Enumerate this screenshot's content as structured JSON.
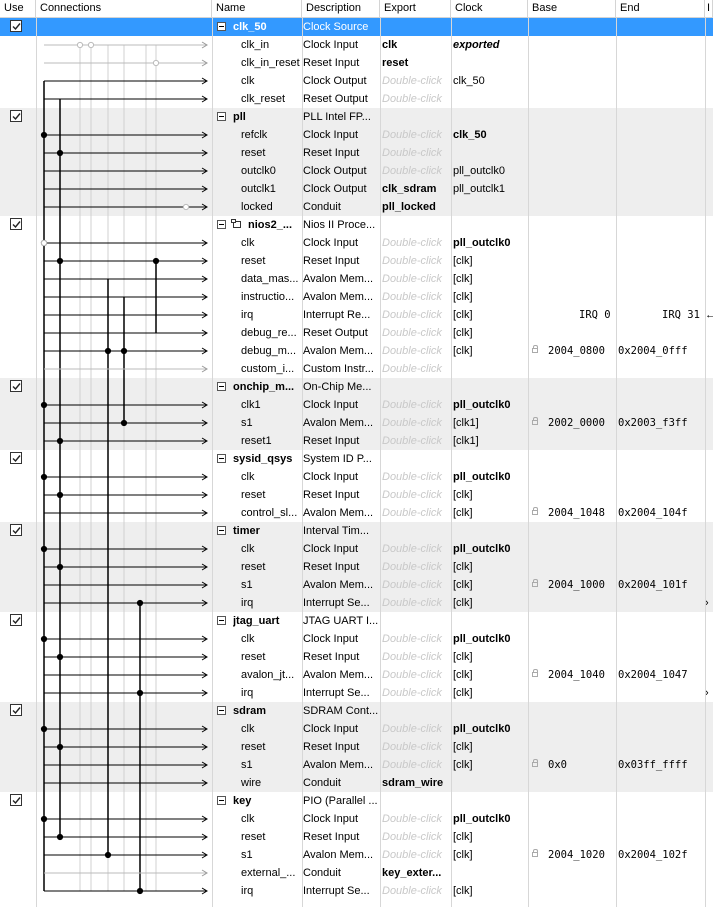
{
  "headers": {
    "use": "Use",
    "connections": "Connections",
    "name": "Name",
    "description": "Description",
    "export": "Export",
    "clock": "Clock",
    "base": "Base",
    "end": "End",
    "irq": "I"
  },
  "rows": [
    {
      "type": "module",
      "name": "clk_50",
      "desc": "Clock Source",
      "export": "",
      "clock": "",
      "base": "",
      "end": "",
      "selected": true
    },
    {
      "type": "port",
      "name": "clk_in",
      "desc": "Clock Input",
      "export": "clk",
      "export_style": "bold",
      "clock": "exported",
      "clock_style": "bold-italic"
    },
    {
      "type": "port",
      "name": "clk_in_reset",
      "desc": "Reset Input",
      "export": "reset",
      "export_style": "bold",
      "clock": ""
    },
    {
      "type": "port",
      "name": "clk",
      "desc": "Clock Output",
      "export": "Double-click",
      "export_style": "hint",
      "clock": "clk_50"
    },
    {
      "type": "port",
      "name": "clk_reset",
      "desc": "Reset Output",
      "export": "Double-click",
      "export_style": "hint",
      "clock": ""
    },
    {
      "type": "module",
      "name": "pll",
      "desc": "PLL Intel FP...",
      "export": "",
      "clock": ""
    },
    {
      "type": "port",
      "name": "refclk",
      "desc": "Clock Input",
      "export": "Double-click",
      "export_style": "hint",
      "clock": "clk_50",
      "clock_style": "bold"
    },
    {
      "type": "port",
      "name": "reset",
      "desc": "Reset Input",
      "export": "Double-click",
      "export_style": "hint",
      "clock": ""
    },
    {
      "type": "port",
      "name": "outclk0",
      "desc": "Clock Output",
      "export": "Double-click",
      "export_style": "hint",
      "clock": "pll_outclk0"
    },
    {
      "type": "port",
      "name": "outclk1",
      "desc": "Clock Output",
      "export": "clk_sdram",
      "export_style": "bold",
      "clock": "pll_outclk1"
    },
    {
      "type": "port",
      "name": "locked",
      "desc": "Conduit",
      "export": "pll_locked",
      "export_style": "bold",
      "clock": ""
    },
    {
      "type": "module",
      "name": "nios2_...",
      "desc": "Nios II Proce...",
      "export": "",
      "clock": "",
      "icon": true
    },
    {
      "type": "port",
      "name": "clk",
      "desc": "Clock Input",
      "export": "Double-click",
      "export_style": "hint",
      "clock": "pll_outclk0",
      "clock_style": "bold"
    },
    {
      "type": "port",
      "name": "reset",
      "desc": "Reset Input",
      "export": "Double-click",
      "export_style": "hint",
      "clock": "[clk]"
    },
    {
      "type": "port",
      "name": "data_mas...",
      "desc": "Avalon Mem...",
      "export": "Double-click",
      "export_style": "hint",
      "clock": "[clk]"
    },
    {
      "type": "port",
      "name": "instructio...",
      "desc": "Avalon Mem...",
      "export": "Double-click",
      "export_style": "hint",
      "clock": "[clk]"
    },
    {
      "type": "port",
      "name": "irq",
      "desc": "Interrupt Re...",
      "export": "Double-click",
      "export_style": "hint",
      "clock": "[clk]",
      "base": "IRQ 0",
      "end": "IRQ 31",
      "irq": "←"
    },
    {
      "type": "port",
      "name": "debug_re...",
      "desc": "Reset Output",
      "export": "Double-click",
      "export_style": "hint",
      "clock": "[clk]"
    },
    {
      "type": "port",
      "name": "debug_m...",
      "desc": "Avalon Mem...",
      "export": "Double-click",
      "export_style": "hint",
      "clock": "[clk]",
      "base": "2004_0800",
      "end": "0x2004_0fff",
      "lock": true
    },
    {
      "type": "port",
      "name": "custom_i...",
      "desc": "Custom Instr...",
      "export": "Double-click",
      "export_style": "hint",
      "clock": ""
    },
    {
      "type": "module",
      "name": "onchip_m...",
      "desc": "On-Chip Me...",
      "export": "",
      "clock": ""
    },
    {
      "type": "port",
      "name": "clk1",
      "desc": "Clock Input",
      "export": "Double-click",
      "export_style": "hint",
      "clock": "pll_outclk0",
      "clock_style": "bold"
    },
    {
      "type": "port",
      "name": "s1",
      "desc": "Avalon Mem...",
      "export": "Double-click",
      "export_style": "hint",
      "clock": "[clk1]",
      "base": "2002_0000",
      "end": "0x2003_f3ff",
      "lock": true
    },
    {
      "type": "port",
      "name": "reset1",
      "desc": "Reset Input",
      "export": "Double-click",
      "export_style": "hint",
      "clock": "[clk1]"
    },
    {
      "type": "module",
      "name": "sysid_qsys",
      "desc": "System ID P...",
      "export": "",
      "clock": ""
    },
    {
      "type": "port",
      "name": "clk",
      "desc": "Clock Input",
      "export": "Double-click",
      "export_style": "hint",
      "clock": "pll_outclk0",
      "clock_style": "bold"
    },
    {
      "type": "port",
      "name": "reset",
      "desc": "Reset Input",
      "export": "Double-click",
      "export_style": "hint",
      "clock": "[clk]"
    },
    {
      "type": "port",
      "name": "control_sl...",
      "desc": "Avalon Mem...",
      "export": "Double-click",
      "export_style": "hint",
      "clock": "[clk]",
      "base": "2004_1048",
      "end": "0x2004_104f",
      "lock": true
    },
    {
      "type": "module",
      "name": "timer",
      "desc": "Interval Tim...",
      "export": "",
      "clock": ""
    },
    {
      "type": "port",
      "name": "clk",
      "desc": "Clock Input",
      "export": "Double-click",
      "export_style": "hint",
      "clock": "pll_outclk0",
      "clock_style": "bold"
    },
    {
      "type": "port",
      "name": "reset",
      "desc": "Reset Input",
      "export": "Double-click",
      "export_style": "hint",
      "clock": "[clk]"
    },
    {
      "type": "port",
      "name": "s1",
      "desc": "Avalon Mem...",
      "export": "Double-click",
      "export_style": "hint",
      "clock": "[clk]",
      "base": "2004_1000",
      "end": "0x2004_101f",
      "lock": true
    },
    {
      "type": "port",
      "name": "irq",
      "desc": "Interrupt Se...",
      "export": "Double-click",
      "export_style": "hint",
      "clock": "[clk]",
      "irq": "›"
    },
    {
      "type": "module",
      "name": "jtag_uart",
      "desc": "JTAG UART I...",
      "export": "",
      "clock": ""
    },
    {
      "type": "port",
      "name": "clk",
      "desc": "Clock Input",
      "export": "Double-click",
      "export_style": "hint",
      "clock": "pll_outclk0",
      "clock_style": "bold"
    },
    {
      "type": "port",
      "name": "reset",
      "desc": "Reset Input",
      "export": "Double-click",
      "export_style": "hint",
      "clock": "[clk]"
    },
    {
      "type": "port",
      "name": "avalon_jt...",
      "desc": "Avalon Mem...",
      "export": "Double-click",
      "export_style": "hint",
      "clock": "[clk]",
      "base": "2004_1040",
      "end": "0x2004_1047",
      "lock": true
    },
    {
      "type": "port",
      "name": "irq",
      "desc": "Interrupt Se...",
      "export": "Double-click",
      "export_style": "hint",
      "clock": "[clk]",
      "irq": "›"
    },
    {
      "type": "module",
      "name": "sdram",
      "desc": "SDRAM Cont...",
      "export": "",
      "clock": ""
    },
    {
      "type": "port",
      "name": "clk",
      "desc": "Clock Input",
      "export": "Double-click",
      "export_style": "hint",
      "clock": "pll_outclk0",
      "clock_style": "bold"
    },
    {
      "type": "port",
      "name": "reset",
      "desc": "Reset Input",
      "export": "Double-click",
      "export_style": "hint",
      "clock": "[clk]"
    },
    {
      "type": "port",
      "name": "s1",
      "desc": "Avalon Mem...",
      "export": "Double-click",
      "export_style": "hint",
      "clock": "[clk]",
      "base": "0x0",
      "end": "0x03ff_ffff",
      "lock": true
    },
    {
      "type": "port",
      "name": "wire",
      "desc": "Conduit",
      "export": "sdram_wire",
      "export_style": "bold",
      "clock": ""
    },
    {
      "type": "module",
      "name": "key",
      "desc": "PIO (Parallel ...",
      "export": "",
      "clock": ""
    },
    {
      "type": "port",
      "name": "clk",
      "desc": "Clock Input",
      "export": "Double-click",
      "export_style": "hint",
      "clock": "pll_outclk0",
      "clock_style": "bold"
    },
    {
      "type": "port",
      "name": "reset",
      "desc": "Reset Input",
      "export": "Double-click",
      "export_style": "hint",
      "clock": "[clk]"
    },
    {
      "type": "port",
      "name": "s1",
      "desc": "Avalon Mem...",
      "export": "Double-click",
      "export_style": "hint",
      "clock": "[clk]",
      "base": "2004_1020",
      "end": "0x2004_102f",
      "lock": true
    },
    {
      "type": "port",
      "name": "external_...",
      "desc": "Conduit",
      "export": "key_exter...",
      "export_style": "bold",
      "clock": ""
    },
    {
      "type": "port",
      "name": "irq",
      "desc": "Interrupt Se...",
      "export": "Double-click",
      "export_style": "hint",
      "clock": "[clk]"
    }
  ],
  "colors": {
    "selected": "#3399ff",
    "alt_row": "#eeeeee",
    "hint": "#c8c8c8"
  }
}
